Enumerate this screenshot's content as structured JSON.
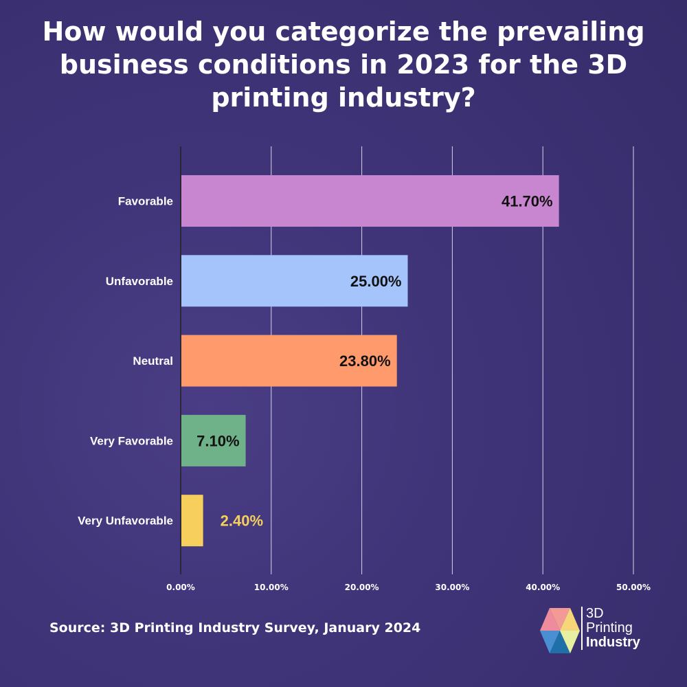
{
  "title": "How would you categorize the prevailing business conditions in 2023 for the 3D printing industry?",
  "source": "Source: 3D Printing Industry Survey, January 2024",
  "logo": {
    "line1": "3D",
    "line2": "Printing",
    "line3": "Industry"
  },
  "chart_data": {
    "type": "bar",
    "orientation": "horizontal",
    "title": "How would you categorize the prevailing business conditions in 2023 for the 3D printing industry?",
    "categories": [
      "Favorable",
      "Unfavorable",
      "Neutral",
      "Very Favorable",
      "Very Unfavorable"
    ],
    "values": [
      41.7,
      25.0,
      23.8,
      7.1,
      2.4
    ],
    "data_labels": [
      "41.70%",
      "25.00%",
      "23.80%",
      "7.10%",
      "2.40%"
    ],
    "colors": [
      "#c986d0",
      "#a4c4fb",
      "#ff9a6c",
      "#6fb289",
      "#f6cf5d"
    ],
    "xlim": [
      0,
      50
    ],
    "xticks": [
      "0.00%",
      "10.00%",
      "20.00%",
      "30.00%",
      "40.00%",
      "50.00%"
    ],
    "grid": true,
    "legend": "none"
  }
}
